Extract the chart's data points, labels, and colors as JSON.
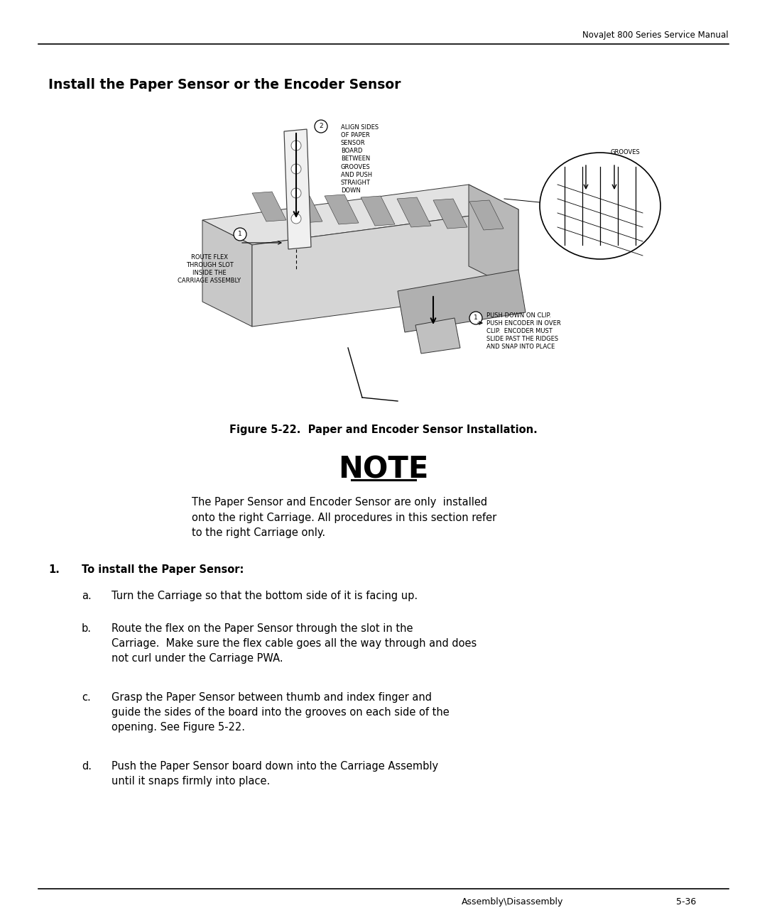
{
  "header_text": "NovaJet 800 Series Service Manual",
  "footer_left": "Assembly\\Disassembly",
  "footer_right": "5-36",
  "title": "Install the Paper Sensor or the Encoder Sensor",
  "figure_caption": "Figure 5-22.  Paper and Encoder Sensor Installation.",
  "note_title": "NOTE",
  "note_line1": "The Paper Sensor and Encoder Sensor are only  installed",
  "note_line2": "onto the right Carriage. All procedures in this section refer",
  "note_line3": "to the right Carriage only.",
  "step1_label": "1.",
  "step1_text": "To install the Paper Sensor:",
  "step_a_label": "a.",
  "step_a_text": "Turn the Carriage so that the bottom side of it is facing up.",
  "step_b_label": "b.",
  "step_b_text": "Route the flex on the Paper Sensor through the slot in the\nCarriage.  Make sure the flex cable goes all the way through and does\nnot curl under the Carriage PWA.",
  "step_c_label": "c.",
  "step_c_text": "Grasp the Paper Sensor between thumb and index finger and\nguide the sides of the board into the grooves on each side of the\nopening. See Figure 5-22.",
  "step_d_label": "d.",
  "step_d_text": "Push the Paper Sensor board down into the Carriage Assembly\nuntil it snaps firmly into place.",
  "diag_label1": "ROUTE FLEX\nTHROUGH SLOT\nINSIDE THE\nCARRIAGE ASSEMBLY",
  "diag_label2": "ALIGN SIDES\nOF PAPER\nSENSOR\nBOARD\nBETWEEN\nGROOVES\nAND PUSH\nSTRAIGHT\nDOWN",
  "diag_label3": "GROOVES",
  "diag_label4": "PUSH DOWN ON CLIP.\nPUSH ENCODER IN OVER\nCLIP.  ENCODER MUST\nSLIDE PAST THE RIDGES\nAND SNAP INTO PLACE",
  "bg_color": "#ffffff",
  "text_color": "#000000"
}
